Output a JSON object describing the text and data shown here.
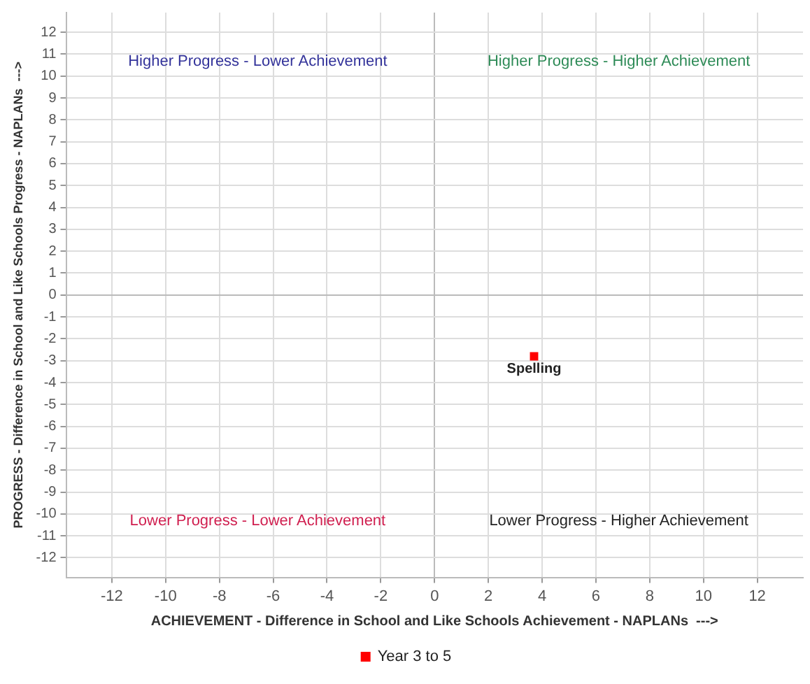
{
  "chart_data": {
    "type": "scatter",
    "xlabel": "ACHIEVEMENT - Difference in School and Like Schools Achievement - NAPLANs  --->",
    "ylabel": "PROGRESS - Difference in School and Like Schools Progress - NAPLANs  --->",
    "xlim": [
      -13.7,
      13.7
    ],
    "ylim": [
      -12.9,
      12.9
    ],
    "xticks": [
      -12,
      -10,
      -8,
      -6,
      -4,
      -2,
      0,
      2,
      4,
      6,
      8,
      10,
      12
    ],
    "yticks": [
      -12,
      -11,
      -10,
      -9,
      -8,
      -7,
      -6,
      -5,
      -4,
      -3,
      -2,
      -1,
      0,
      1,
      2,
      3,
      4,
      5,
      6,
      7,
      8,
      9,
      10,
      11,
      12
    ],
    "series": [
      {
        "name": "Year 3 to 5",
        "color": "#ff0000",
        "x": [
          3.7
        ],
        "values": [
          -2.8
        ]
      }
    ],
    "marker": "square",
    "grid": true,
    "legend": "bottom",
    "annotations": [
      "Higher Progress - Lower Achievement",
      "Higher Progress - Higher Achievement",
      "Lower Progress - Lower Achievement",
      "Lower Progress - Higher Achievement",
      {
        "text": "Spelling",
        "x": 3.7,
        "y": -2.8
      }
    ]
  }
}
